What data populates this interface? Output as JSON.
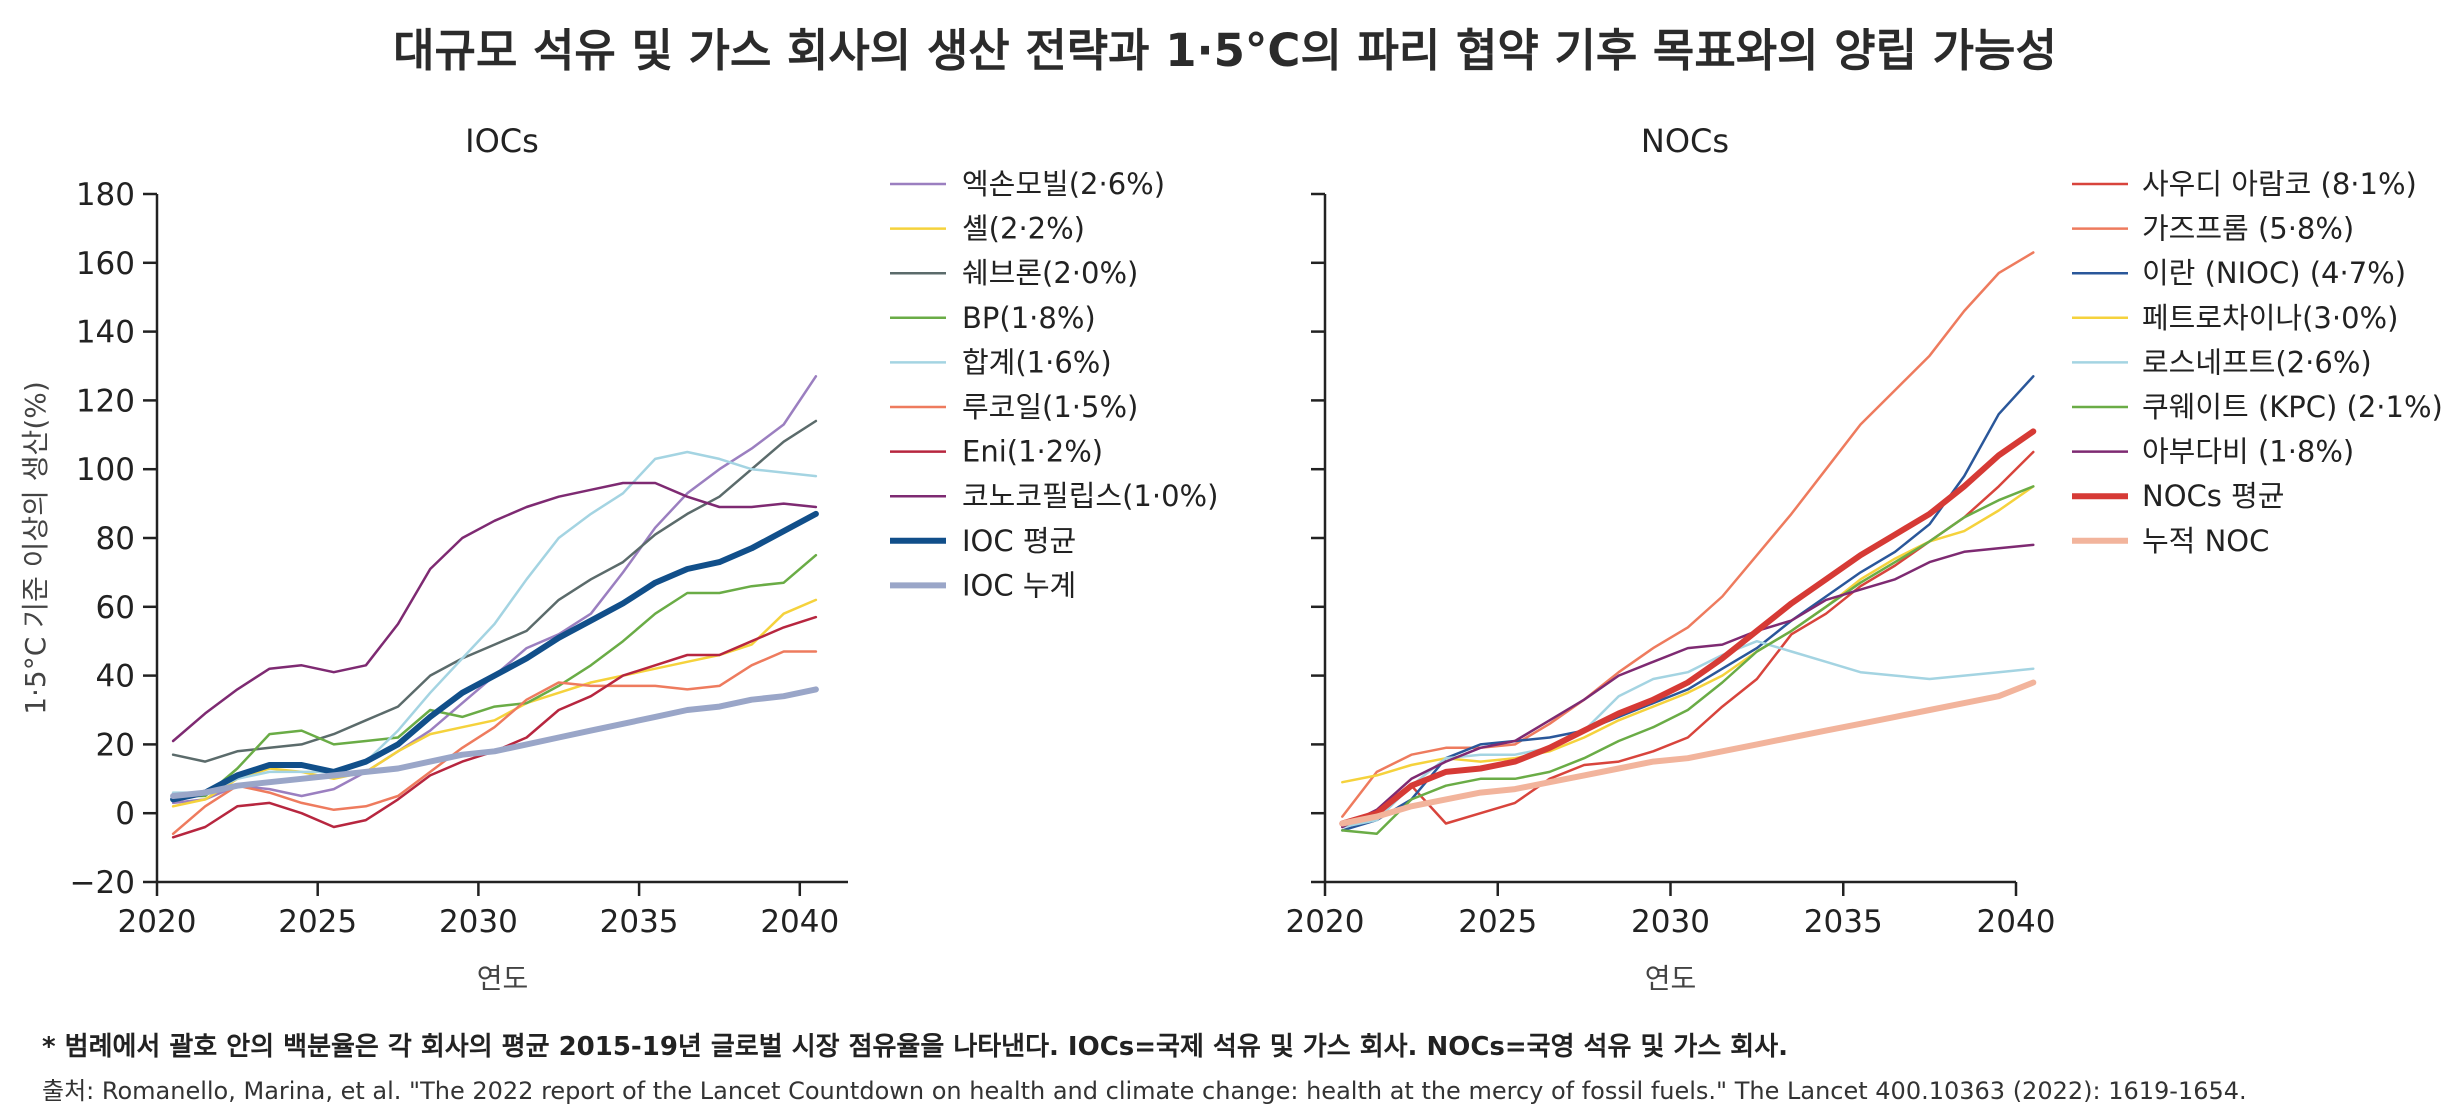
{
  "title": "대규모 석유 및 가스 회사의 생산 전략과 1·5°C의 파리 협약 기후 목표와의 양립 가능성",
  "chart_data": [
    {
      "type": "line",
      "title": "IOCs",
      "xlabel": "연도",
      "ylabel": "1·5°C 기준 이상의 생산(%)",
      "xlim": [
        2020,
        2041.5
      ],
      "ylim": [
        -20,
        180
      ],
      "xticks": [
        "2020",
        "2025",
        "2030",
        "2035",
        "2040"
      ],
      "yticks": [
        "−20",
        "0",
        "20",
        "40",
        "60",
        "80",
        "100",
        "120",
        "140",
        "160",
        "180"
      ],
      "x": [
        2020.5,
        2021.5,
        2022.5,
        2023.5,
        2024.5,
        2025.5,
        2026.5,
        2027.5,
        2028.5,
        2029.5,
        2030.5,
        2031.5,
        2032.5,
        2033.5,
        2034.5,
        2035.5,
        2036.5,
        2037.5,
        2038.5,
        2039.5,
        2040.5
      ],
      "series": [
        {
          "name": "엑손모빌(2·6%)",
          "color": "#9b7fc0",
          "width": 2.5,
          "values": [
            3,
            4,
            8,
            7,
            5,
            7,
            12,
            18,
            24,
            32,
            40,
            48,
            52,
            58,
            70,
            83,
            93,
            100,
            106,
            113,
            127
          ]
        },
        {
          "name": "셸(2·2%)",
          "color": "#f5d23c",
          "width": 2.5,
          "values": [
            2,
            4,
            10,
            13,
            12,
            10,
            12,
            18,
            23,
            25,
            27,
            32,
            35,
            38,
            40,
            42,
            44,
            46,
            49,
            58,
            62
          ]
        },
        {
          "name": "쉐브론(2·0%)",
          "color": "#5b6b6b",
          "width": 2.5,
          "values": [
            17,
            15,
            18,
            19,
            20,
            23,
            27,
            31,
            40,
            45,
            49,
            53,
            62,
            68,
            73,
            81,
            87,
            92,
            100,
            108,
            114
          ]
        },
        {
          "name": "BP(1·8%)",
          "color": "#6aac46",
          "width": 2.5,
          "values": [
            5,
            5,
            13,
            23,
            24,
            20,
            21,
            22,
            30,
            28,
            31,
            32,
            37,
            43,
            50,
            58,
            64,
            64,
            66,
            67,
            75
          ]
        },
        {
          "name": "합계(1·6%)",
          "color": "#a4d4e2",
          "width": 2.5,
          "values": [
            6,
            6,
            10,
            12,
            12,
            12,
            15,
            24,
            35,
            45,
            55,
            68,
            80,
            87,
            93,
            103,
            105,
            103,
            100,
            99,
            98
          ]
        },
        {
          "name": "루코일(1·5%)",
          "color": "#ee7b5e",
          "width": 2.5,
          "values": [
            -6,
            2,
            8,
            6,
            3,
            1,
            2,
            5,
            12,
            19,
            25,
            33,
            38,
            37,
            37,
            37,
            36,
            37,
            43,
            47,
            47
          ]
        },
        {
          "name": "Eni(1·2%)",
          "color": "#b7263f",
          "width": 2.5,
          "values": [
            -7,
            -4,
            2,
            3,
            0,
            -4,
            -2,
            4,
            11,
            15,
            18,
            22,
            30,
            34,
            40,
            43,
            46,
            46,
            50,
            54,
            57
          ]
        },
        {
          "name": "코노코필립스(1·0%)",
          "color": "#7e2a72",
          "width": 2.5,
          "values": [
            21,
            29,
            36,
            42,
            43,
            41,
            43,
            55,
            71,
            80,
            85,
            89,
            92,
            94,
            96,
            96,
            92,
            89,
            89,
            90,
            89
          ]
        },
        {
          "name": "IOC 평균",
          "color": "#114f8a",
          "width": 6,
          "values": [
            4,
            6,
            11,
            14,
            14,
            12,
            15,
            20,
            28,
            35,
            40,
            45,
            51,
            56,
            61,
            67,
            71,
            73,
            77,
            82,
            87
          ]
        },
        {
          "name": "IOC 누계",
          "color": "#9aa6c8",
          "width": 6,
          "values": [
            5,
            6,
            8,
            9,
            10,
            11,
            12,
            13,
            15,
            17,
            18,
            20,
            22,
            24,
            26,
            28,
            30,
            31,
            33,
            34,
            36
          ]
        }
      ]
    },
    {
      "type": "line",
      "title": "NOCs",
      "xlabel": "연도",
      "ylabel": "",
      "xlim": [
        2020,
        2040.5
      ],
      "ylim": [
        -20,
        180
      ],
      "xticks": [
        "2020",
        "2025",
        "2030",
        "2035",
        "2040"
      ],
      "x": [
        2020.5,
        2021.5,
        2022.5,
        2023.5,
        2024.5,
        2025.5,
        2026.5,
        2027.5,
        2028.5,
        2029.5,
        2030.5,
        2031.5,
        2032.5,
        2033.5,
        2034.5,
        2035.5,
        2036.5,
        2037.5,
        2038.5,
        2039.5,
        2040.5
      ],
      "series": [
        {
          "name": "사우디 아람코 (8·1%)",
          "color": "#d8443c",
          "width": 2.5,
          "values": [
            -4,
            -1,
            8,
            -3,
            0,
            3,
            10,
            14,
            15,
            18,
            22,
            31,
            39,
            52,
            58,
            66,
            72,
            79,
            86,
            95,
            105
          ]
        },
        {
          "name": "가즈프롬 (5·8%)",
          "color": "#ee7b5e",
          "width": 2.5,
          "values": [
            -1,
            12,
            17,
            19,
            19,
            20,
            26,
            33,
            41,
            48,
            54,
            63,
            75,
            87,
            100,
            113,
            123,
            133,
            146,
            157,
            163
          ]
        },
        {
          "name": "이란 (NIOC) (4·7%)",
          "color": "#2a579a",
          "width": 2.5,
          "values": [
            -5,
            -2,
            4,
            16,
            20,
            21,
            22,
            24,
            28,
            32,
            36,
            42,
            48,
            56,
            63,
            70,
            76,
            84,
            98,
            116,
            127
          ]
        },
        {
          "name": "페트로차이나(3·0%)",
          "color": "#f5d23c",
          "width": 2.5,
          "values": [
            9,
            11,
            14,
            16,
            15,
            16,
            18,
            22,
            27,
            31,
            35,
            40,
            47,
            53,
            60,
            68,
            74,
            79,
            82,
            88,
            95
          ]
        },
        {
          "name": "로스네프트(2·6%)",
          "color": "#a4d4e2",
          "width": 2.5,
          "values": [
            -4,
            -2,
            8,
            16,
            17,
            17,
            19,
            24,
            34,
            39,
            41,
            46,
            50,
            47,
            44,
            41,
            40,
            39,
            40,
            41,
            42
          ]
        },
        {
          "name": "쿠웨이트 (KPC) (2·1%)",
          "color": "#6aac46",
          "width": 2.5,
          "values": [
            -5,
            -6,
            4,
            8,
            10,
            10,
            12,
            16,
            21,
            25,
            30,
            38,
            47,
            53,
            60,
            67,
            73,
            79,
            86,
            91,
            95
          ]
        },
        {
          "name": "아부다비 (1·8%)",
          "color": "#7e2a72",
          "width": 2.5,
          "values": [
            -4,
            1,
            10,
            15,
            19,
            21,
            27,
            33,
            40,
            44,
            48,
            49,
            53,
            56,
            62,
            65,
            68,
            73,
            76,
            77,
            78
          ]
        },
        {
          "name": "NOCs 평균",
          "color": "#d63a35",
          "width": 6,
          "values": [
            -3,
            0,
            8,
            12,
            13,
            15,
            19,
            24,
            29,
            33,
            38,
            45,
            53,
            61,
            68,
            75,
            81,
            87,
            95,
            104,
            111
          ]
        },
        {
          "name": "누적 NOC",
          "color": "#f2b49c",
          "width": 6,
          "values": [
            -3,
            -1,
            2,
            4,
            6,
            7,
            9,
            11,
            13,
            15,
            16,
            18,
            20,
            22,
            24,
            26,
            28,
            30,
            32,
            34,
            38
          ]
        }
      ]
    }
  ],
  "footnote": "* 범례에서 괄호 안의 백분율은 각 회사의 평균 2015-19년 글로벌 시장 점유율을 나타낸다. IOCs=국제 석유 및 가스 회사. NOCs=국영 석유 및 가스 회사.",
  "source": "출처: Romanello, Marina, et al. \"The 2022 report of the Lancet Countdown on health and climate change: health at the mercy of fossil fuels.\" The Lancet 400.10363 (2022): 1619-1654."
}
